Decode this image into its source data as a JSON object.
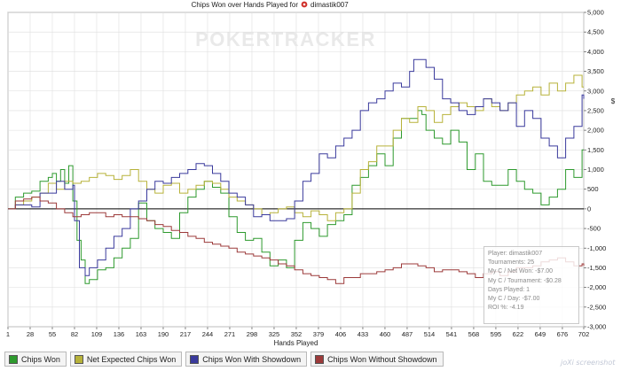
{
  "chart_data": {
    "type": "line",
    "title": "Chips Won over Hands Played for",
    "player_name": "dimastik007",
    "logo_text": "POKERTRACKER",
    "xlabel": "Hands Played",
    "ylabel": "",
    "y_unit": "$",
    "xlim": [
      1,
      702
    ],
    "ylim": [
      -3000,
      5000
    ],
    "x_ticks": [
      "1",
      "28",
      "55",
      "82",
      "109",
      "136",
      "163",
      "190",
      "217",
      "244",
      "271",
      "298",
      "325",
      "352",
      "379",
      "406",
      "433",
      "460",
      "487",
      "514",
      "541",
      "568",
      "595",
      "622",
      "649",
      "676",
      "702"
    ],
    "y_ticks": [
      "5,000",
      "4,500",
      "4,000",
      "3,500",
      "3,000",
      "2,500",
      "2,000",
      "1,500",
      "1,000",
      "500",
      "0",
      "-500",
      "-1,000",
      "-1,500",
      "-2,000",
      "-2,500",
      "-3,000"
    ],
    "grid": true,
    "legend_position": "bottom",
    "series": [
      {
        "name": "Chips Won",
        "color": "#2e9a2e",
        "x": [
          1,
          10,
          20,
          30,
          40,
          50,
          55,
          60,
          65,
          70,
          75,
          80,
          85,
          90,
          95,
          100,
          110,
          120,
          130,
          140,
          150,
          160,
          170,
          180,
          190,
          200,
          210,
          220,
          230,
          240,
          250,
          260,
          270,
          280,
          290,
          300,
          310,
          320,
          330,
          340,
          350,
          360,
          370,
          380,
          390,
          400,
          410,
          420,
          430,
          440,
          450,
          460,
          470,
          480,
          490,
          500,
          505,
          510,
          520,
          530,
          540,
          550,
          560,
          570,
          580,
          590,
          600,
          610,
          620,
          630,
          640,
          650,
          660,
          670,
          680,
          690,
          700,
          702
        ],
        "y": [
          0,
          300,
          400,
          450,
          700,
          800,
          900,
          700,
          1000,
          650,
          1100,
          200,
          -800,
          -1300,
          -1900,
          -1800,
          -1550,
          -1500,
          -1250,
          -1000,
          -750,
          150,
          -300,
          -500,
          -600,
          -750,
          -100,
          300,
          500,
          700,
          550,
          400,
          -200,
          -600,
          -800,
          -750,
          -1100,
          -1450,
          -1300,
          -1500,
          -800,
          -350,
          -500,
          -700,
          -400,
          -300,
          -150,
          600,
          800,
          1100,
          1400,
          1100,
          1800,
          2300,
          2300,
          2500,
          2400,
          2000,
          1800,
          1650,
          2000,
          1700,
          1000,
          1400,
          700,
          600,
          600,
          1000,
          700,
          500,
          400,
          100,
          300,
          500,
          1000,
          800,
          1500,
          1500
        ]
      },
      {
        "name": "Net Expected Chips Won",
        "color": "#b7b23a",
        "x": [
          1,
          10,
          20,
          30,
          40,
          50,
          60,
          70,
          80,
          90,
          100,
          110,
          120,
          130,
          140,
          150,
          160,
          170,
          180,
          190,
          200,
          210,
          220,
          230,
          240,
          250,
          260,
          270,
          280,
          290,
          300,
          310,
          320,
          330,
          340,
          350,
          360,
          370,
          380,
          390,
          400,
          410,
          420,
          430,
          440,
          450,
          460,
          470,
          480,
          490,
          500,
          510,
          520,
          530,
          540,
          550,
          560,
          570,
          580,
          590,
          600,
          610,
          620,
          630,
          640,
          650,
          660,
          670,
          680,
          690,
          700,
          702
        ],
        "y": [
          0,
          100,
          200,
          300,
          400,
          650,
          500,
          700,
          650,
          700,
          800,
          900,
          850,
          750,
          850,
          1000,
          700,
          500,
          400,
          600,
          650,
          400,
          500,
          600,
          700,
          650,
          500,
          300,
          200,
          100,
          0,
          -150,
          -100,
          0,
          50,
          -100,
          -200,
          -50,
          -150,
          -300,
          -100,
          0,
          400,
          1000,
          1200,
          1600,
          1600,
          2000,
          2300,
          2200,
          2600,
          2500,
          2200,
          2400,
          2600,
          2700,
          2600,
          2500,
          2800,
          2600,
          2500,
          2700,
          2900,
          3000,
          3100,
          2900,
          3200,
          3000,
          3200,
          3400,
          3100,
          3100
        ]
      },
      {
        "name": "Chips Won With Showdown",
        "color": "#3a3a9c",
        "x": [
          1,
          10,
          20,
          30,
          40,
          50,
          60,
          70,
          80,
          82,
          88,
          95,
          100,
          110,
          120,
          130,
          140,
          150,
          160,
          170,
          180,
          190,
          200,
          210,
          220,
          230,
          240,
          250,
          260,
          270,
          280,
          290,
          300,
          310,
          320,
          330,
          340,
          350,
          360,
          370,
          380,
          390,
          400,
          410,
          420,
          430,
          440,
          450,
          460,
          470,
          480,
          490,
          495,
          500,
          510,
          520,
          530,
          540,
          550,
          560,
          570,
          580,
          590,
          600,
          610,
          620,
          630,
          640,
          650,
          660,
          670,
          680,
          690,
          700,
          702
        ],
        "y": [
          0,
          100,
          100,
          50,
          400,
          400,
          700,
          500,
          600,
          -300,
          -1500,
          -1700,
          -1500,
          -1300,
          -1000,
          -700,
          -500,
          0,
          200,
          500,
          700,
          650,
          800,
          900,
          1000,
          1150,
          1100,
          900,
          700,
          400,
          300,
          100,
          -200,
          -150,
          -300,
          -300,
          -250,
          200,
          700,
          900,
          1400,
          1300,
          1600,
          1800,
          2000,
          2500,
          2700,
          2800,
          3000,
          3200,
          3100,
          3500,
          3800,
          3800,
          3600,
          3300,
          2800,
          2700,
          2500,
          2400,
          2600,
          2800,
          2700,
          2500,
          2700,
          2100,
          2500,
          2300,
          1800,
          1600,
          1300,
          1800,
          2100,
          2900,
          2800
        ]
      },
      {
        "name": "Chips Won Without Showdown",
        "color": "#9c3a3a",
        "x": [
          1,
          10,
          20,
          30,
          40,
          50,
          60,
          70,
          80,
          90,
          100,
          110,
          120,
          130,
          140,
          150,
          160,
          170,
          180,
          190,
          200,
          210,
          220,
          230,
          240,
          250,
          260,
          270,
          280,
          290,
          300,
          310,
          320,
          330,
          340,
          350,
          360,
          370,
          380,
          390,
          400,
          410,
          420,
          430,
          440,
          450,
          460,
          470,
          480,
          490,
          500,
          510,
          520,
          530,
          540,
          550,
          560,
          570,
          580,
          590,
          600,
          610,
          620,
          630,
          640,
          650,
          660,
          670,
          680,
          690,
          700,
          702
        ],
        "y": [
          0,
          200,
          250,
          300,
          200,
          150,
          0,
          -100,
          -200,
          -150,
          -100,
          -100,
          -200,
          -150,
          -200,
          -200,
          -250,
          -300,
          -400,
          -450,
          -550,
          -600,
          -700,
          -750,
          -850,
          -900,
          -950,
          -1000,
          -1100,
          -1150,
          -1200,
          -1250,
          -1300,
          -1400,
          -1450,
          -1550,
          -1650,
          -1700,
          -1750,
          -1800,
          -1900,
          -1750,
          -1750,
          -1650,
          -1650,
          -1600,
          -1550,
          -1500,
          -1400,
          -1400,
          -1450,
          -1500,
          -1600,
          -1550,
          -1550,
          -1600,
          -1650,
          -1750,
          -1650,
          -1600,
          -1700,
          -1600,
          -1500,
          -1500,
          -1450,
          -1350,
          -1300,
          -1250,
          -1350,
          -1450,
          -1400,
          -1450
        ]
      }
    ]
  },
  "infobox": {
    "lines": [
      "Player: dimastik007",
      "Tournaments: 25",
      "My C / Net Won: -$7.00",
      "My C / Tournament: -$0.28",
      "Days Played: 1",
      "My C / Day: -$7.00",
      "ROI %: -4.19"
    ]
  },
  "watermark": "joXi screenshot"
}
